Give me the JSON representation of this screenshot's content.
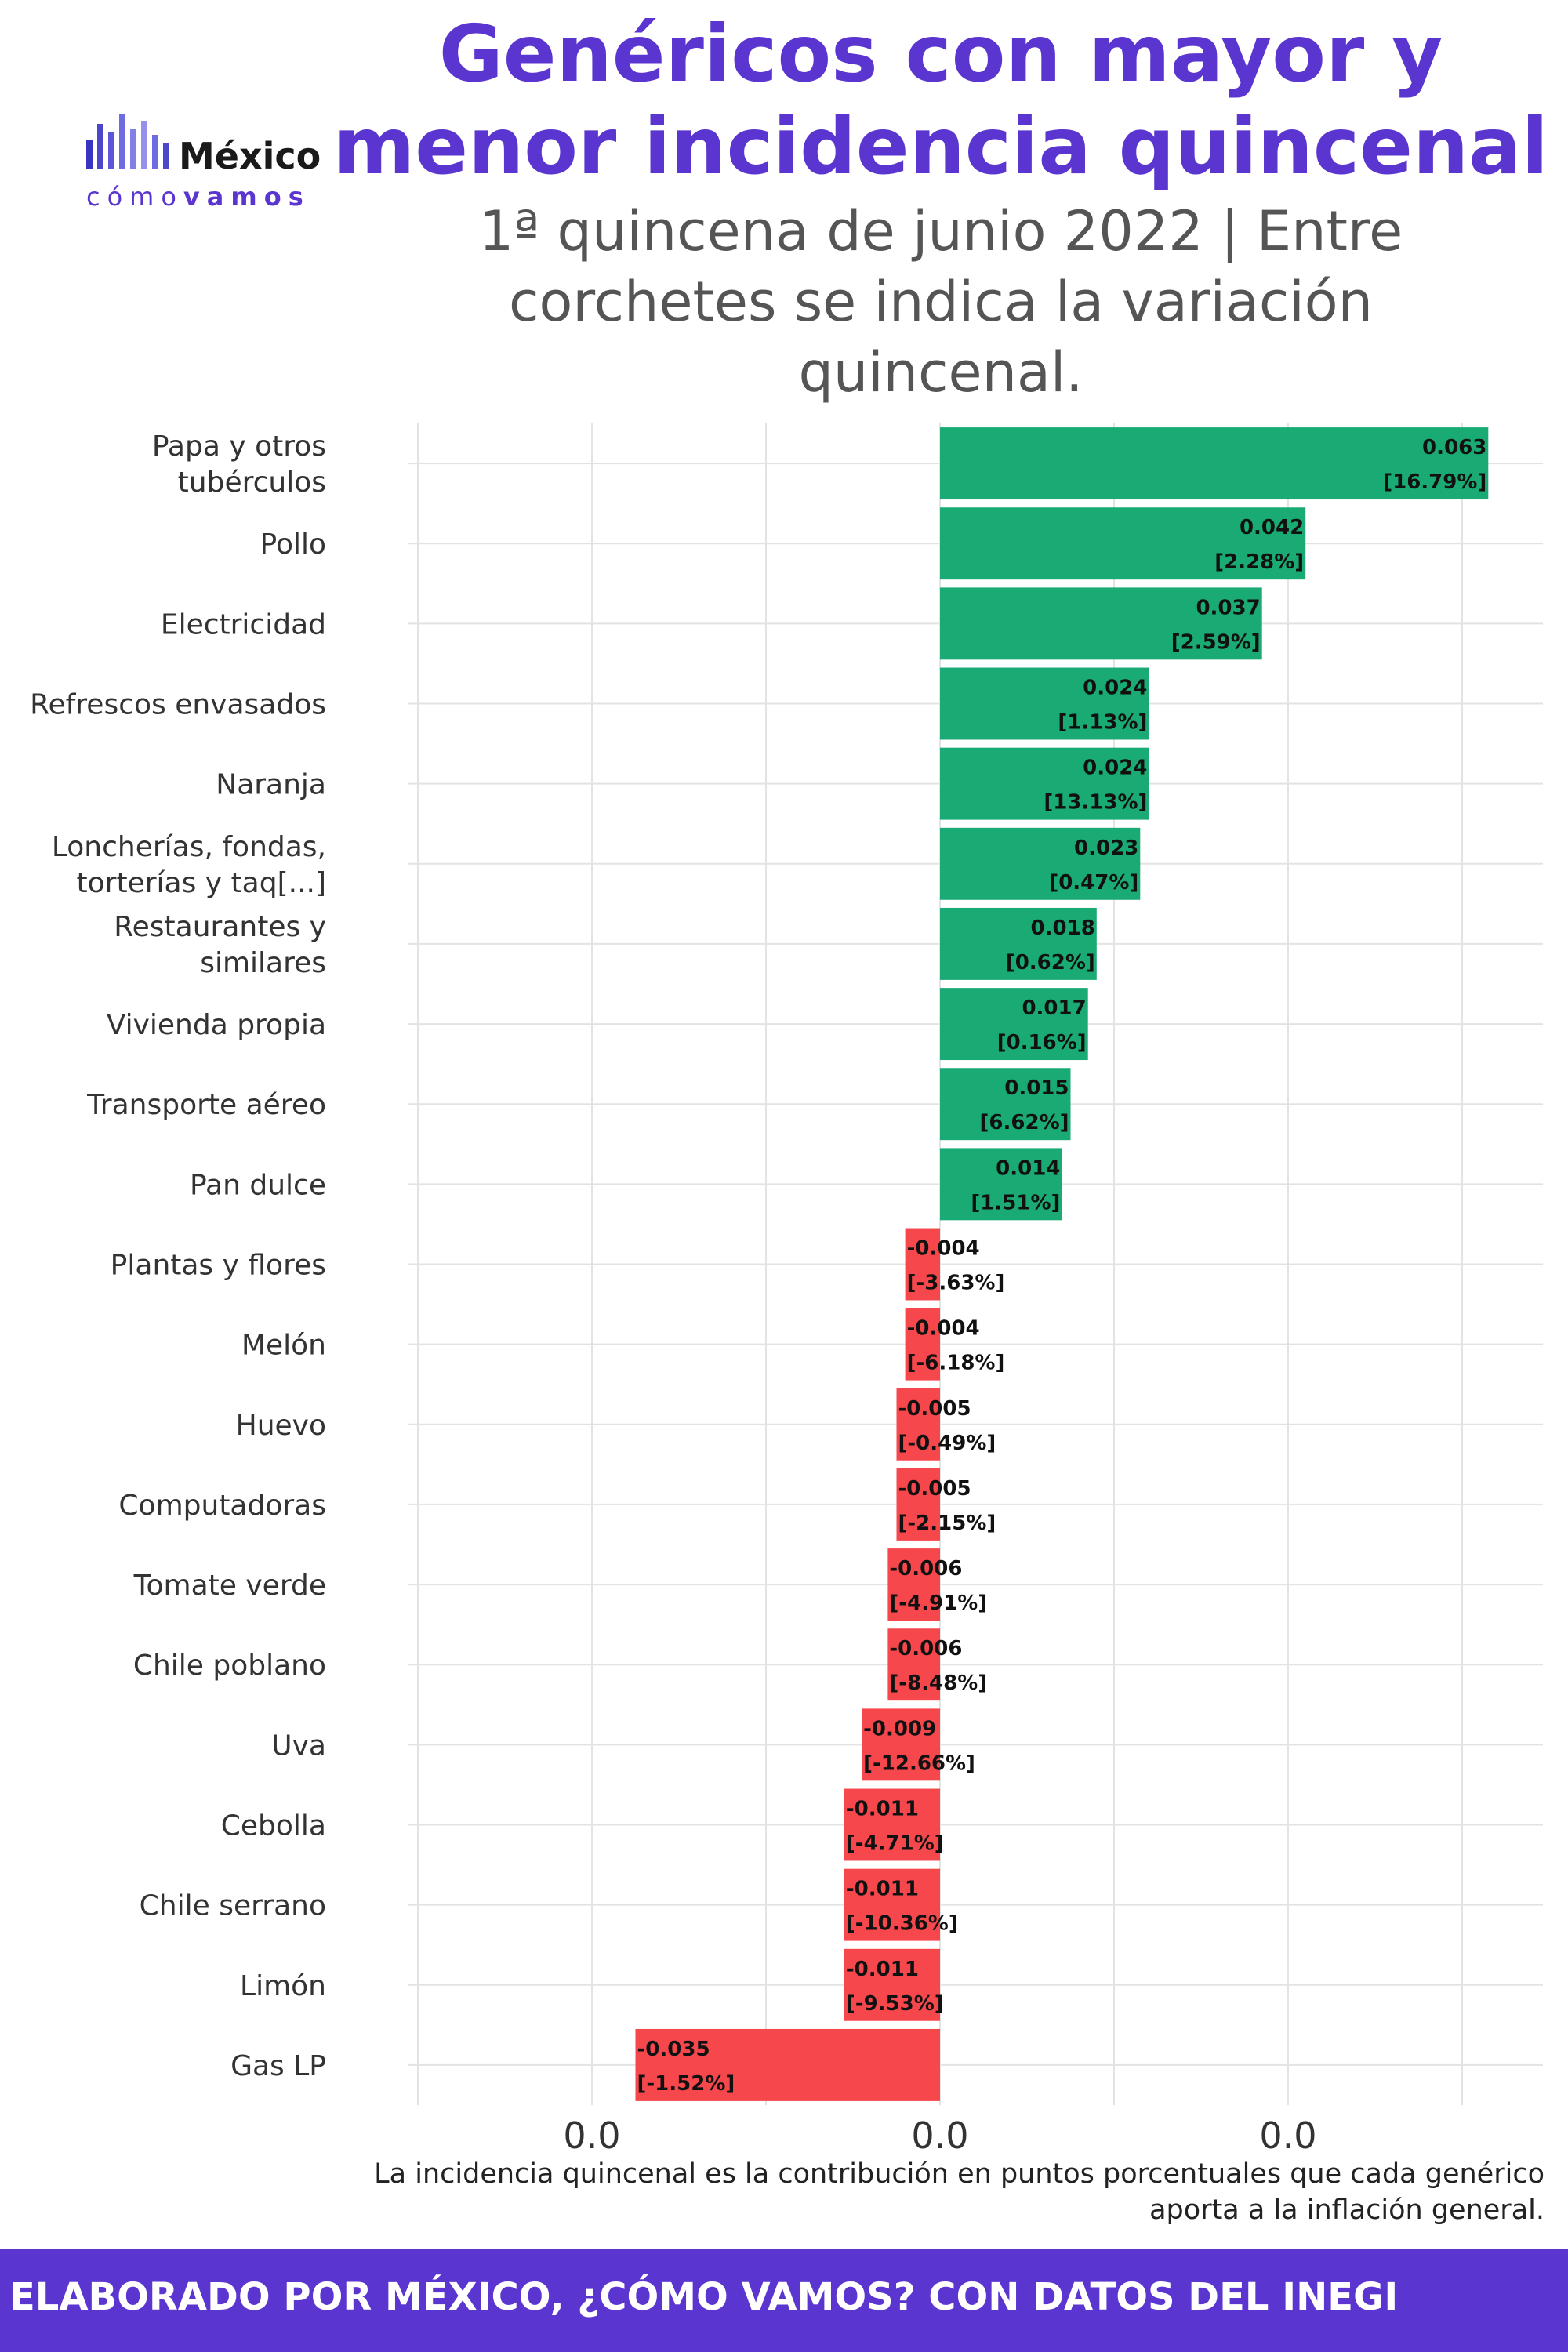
{
  "logo": {
    "word": "México",
    "sub_light": "cómo",
    "sub_bold": "vamos",
    "bar_colors": [
      "#3a35c0",
      "#4b46cc",
      "#5c57d6",
      "#6f6be0",
      "#827fe6",
      "#9591ea",
      "#6f6be0",
      "#4b46cc"
    ]
  },
  "title": "Genéricos con mayor y menor incidencia quincenal",
  "subtitle": "1ª quincena de junio 2022 | Entre corchetes se indica la variación quincenal.",
  "caption": "La incidencia quincenal es la contribución en puntos porcentuales que cada genérico aporta a la inflación general.",
  "footer": "ELABORADO POR MÉXICO, ¿CÓMO VAMOS? CON DATOS DEL INEGI",
  "colors": {
    "positive": "#1aaa73",
    "negative": "#f5474c",
    "grid": "#e3e3e3"
  },
  "chart_data": {
    "type": "bar",
    "orientation": "horizontal",
    "xlim": [
      -0.06,
      0.07
    ],
    "x_ticks": [
      {
        "value": -0.04,
        "label": "0.0"
      },
      {
        "value": 0.0,
        "label": "0.0"
      },
      {
        "value": 0.04,
        "label": "0.0"
      }
    ],
    "grid": true,
    "categories": [
      "Papa y otros tubérculos",
      "Pollo",
      "Electricidad",
      "Refrescos envasados",
      "Naranja",
      "Loncherías, fondas, torterías y taq[...]",
      "Restaurantes y similares",
      "Vivienda propia",
      "Transporte aéreo",
      "Pan dulce",
      "Plantas y flores",
      "Melón",
      "Huevo",
      "Computadoras",
      "Tomate verde",
      "Chile poblano",
      "Uva",
      "Cebolla",
      "Chile serrano",
      "Limón",
      "Gas LP"
    ],
    "category_lines": [
      [
        "Papa y otros",
        "tubérculos"
      ],
      [
        "Pollo"
      ],
      [
        "Electricidad"
      ],
      [
        "Refrescos envasados"
      ],
      [
        "Naranja"
      ],
      [
        "Loncherías, fondas,",
        "torterías y taq[...]"
      ],
      [
        "Restaurantes y",
        "similares"
      ],
      [
        "Vivienda propia"
      ],
      [
        "Transporte aéreo"
      ],
      [
        "Pan dulce"
      ],
      [
        "Plantas y flores"
      ],
      [
        "Melón"
      ],
      [
        "Huevo"
      ],
      [
        "Computadoras"
      ],
      [
        "Tomate verde"
      ],
      [
        "Chile poblano"
      ],
      [
        "Uva"
      ],
      [
        "Cebolla"
      ],
      [
        "Chile serrano"
      ],
      [
        "Limón"
      ],
      [
        "Gas LP"
      ]
    ],
    "values": [
      0.063,
      0.042,
      0.037,
      0.024,
      0.024,
      0.023,
      0.018,
      0.017,
      0.015,
      0.014,
      -0.004,
      -0.004,
      -0.005,
      -0.005,
      -0.006,
      -0.006,
      -0.009,
      -0.011,
      -0.011,
      -0.011,
      -0.035
    ],
    "value_labels": [
      "0.063",
      "0.042",
      "0.037",
      "0.024",
      "0.024",
      "0.023",
      "0.018",
      "0.017",
      "0.015",
      "0.014",
      "-0.004",
      "-0.004",
      "-0.005",
      "-0.005",
      "-0.006",
      "-0.006",
      "-0.009",
      "-0.011",
      "-0.011",
      "-0.011",
      "-0.035"
    ],
    "variation_labels": [
      "[16.79%]",
      "[2.28%]",
      "[2.59%]",
      "[1.13%]",
      "[13.13%]",
      "[0.47%]",
      "[0.62%]",
      "[0.16%]",
      "[6.62%]",
      "[1.51%]",
      "[-3.63%]",
      "[-6.18%]",
      "[-0.49%]",
      "[-2.15%]",
      "[-4.91%]",
      "[-8.48%]",
      "[-12.66%]",
      "[-4.71%]",
      "[-10.36%]",
      "[-9.53%]",
      "[-1.52%]"
    ]
  }
}
